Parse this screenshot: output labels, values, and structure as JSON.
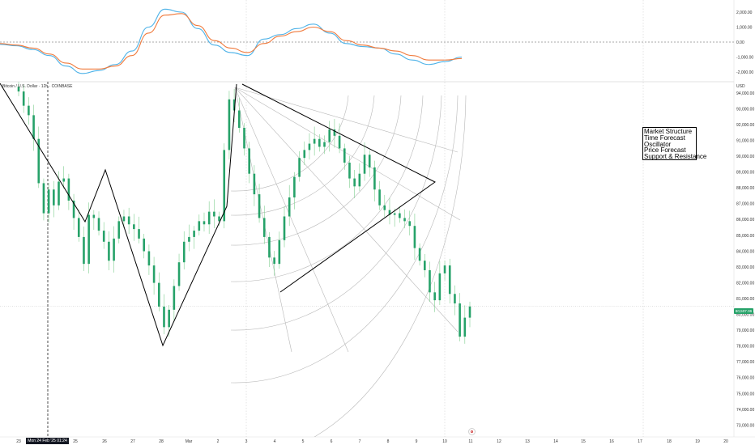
{
  "header": {
    "symbol_title": "Bitcoin / U.S. Dollar · 12h · COINBASE",
    "currency": "USD"
  },
  "legend": {
    "items": [
      "Market Structure",
      "Time Forecast",
      "Oscillator",
      "Price Forecast",
      "Support & Resistance"
    ]
  },
  "price_axis": {
    "labels": [
      "94,000.00",
      "93,000.00",
      "92,000.00",
      "91,000.00",
      "90,000.00",
      "89,000.00",
      "88,000.00",
      "87,000.00",
      "86,000.00",
      "85,000.00",
      "84,000.00",
      "83,000.00",
      "82,000.00",
      "81,000.00",
      "80,000.00",
      "79,000.00",
      "78,000.00",
      "77,000.00",
      "76,000.00",
      "75,000.00",
      "74,000.00",
      "73,000.00"
    ],
    "current_price_label": "80,507.06"
  },
  "oscillator_axis": {
    "labels": [
      "2,000.00",
      "1,000.00",
      "0.00",
      "-1,000.00",
      "-2,000.00"
    ]
  },
  "date_axis": {
    "labels": [
      "23",
      "25",
      "26",
      "27",
      "28",
      "Mar",
      "2",
      "3",
      "4",
      "5",
      "6",
      "7",
      "8",
      "9",
      "10",
      "11",
      "12",
      "13",
      "14",
      "15",
      "16",
      "17",
      "18",
      "19",
      "20"
    ],
    "crosshair_label": "Mon 24 Feb '25 01:24"
  },
  "colors": {
    "bull": "#26a269",
    "bull_wick": "#7fcf8f",
    "bear": "#26a269",
    "macd_line": "#4fb3e8",
    "signal_line": "#f07a3c",
    "structure": "#000000",
    "fan": "#b8b8b8"
  },
  "icons": {
    "go_live": "go-to-realtime-icon"
  },
  "chart_data": [
    {
      "type": "candlestick",
      "title": "Bitcoin / U.S. Dollar · 12h · COINBASE",
      "ylabel": "USD",
      "ylim": [
        72500,
        94500
      ],
      "x": [
        "23",
        "25",
        "26",
        "27",
        "28",
        "Mar",
        "2",
        "3",
        "4",
        "5",
        "6",
        "7",
        "8",
        "9",
        "10",
        "11"
      ],
      "close": [
        94100,
        91200,
        88400,
        89100,
        86300,
        84100,
        85800,
        86000,
        93600,
        83600,
        87800,
        90200,
        87300,
        85900,
        82500,
        80507
      ],
      "current_price": 80507.06
    },
    {
      "type": "line",
      "title": "Oscillator",
      "ylim": [
        -2400,
        2400
      ],
      "series": [
        {
          "values": [
            -150,
            -250,
            -500,
            -900,
            -1600,
            -2100,
            -1900,
            -1500,
            -600,
            1000,
            2200,
            2000,
            900,
            -200,
            -700,
            -900,
            200,
            500,
            900,
            1200,
            600,
            -100,
            -300,
            -400,
            -800,
            -1200,
            -1500,
            -1300,
            -1000
          ]
        },
        {
          "values": [
            -100,
            -200,
            -400,
            -800,
            -1400,
            -1800,
            -1800,
            -1600,
            -900,
            600,
            1800,
            1900,
            1100,
            100,
            -400,
            -700,
            -100,
            400,
            700,
            1000,
            700,
            100,
            -200,
            -400,
            -600,
            -900,
            -1200,
            -1200,
            -1100
          ]
        }
      ]
    }
  ]
}
